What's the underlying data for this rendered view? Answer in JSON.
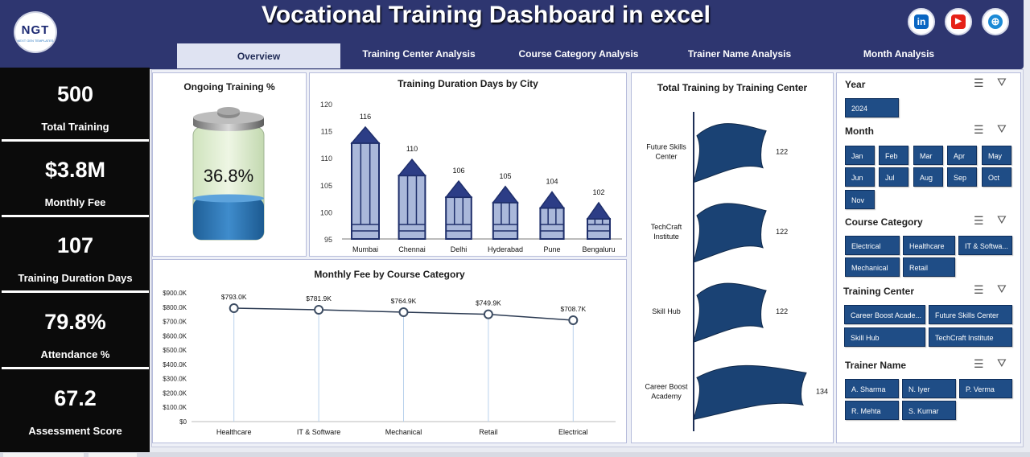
{
  "header": {
    "title": "Vocational Training Dashboard in excel",
    "logo_text": "NGT",
    "logo_subtext": "NEXT GEN TEMPLATES"
  },
  "social": [
    {
      "icon": "linkedin-icon",
      "glyph": "in",
      "color": "#0a66c2"
    },
    {
      "icon": "youtube-icon",
      "glyph": "▶",
      "color": "#e62117"
    },
    {
      "icon": "globe-icon",
      "glyph": "⊕",
      "color": "#1b8ad6"
    }
  ],
  "nav": {
    "tabs": [
      "Overview",
      "Training Center Analysis",
      "Course Category Analysis",
      "Trainer Name Analysis",
      "Month Analysis"
    ],
    "active": "Overview"
  },
  "kpis": [
    {
      "value": "500",
      "label": "Total Training"
    },
    {
      "value": "$3.8M",
      "label": "Monthly Fee"
    },
    {
      "value": "107",
      "label": "Training Duration Days"
    },
    {
      "value": "79.8%",
      "label": "Attendance %"
    },
    {
      "value": "67.2",
      "label": "Assessment Score"
    }
  ],
  "ongoing": {
    "title": "Ongoing Training %",
    "value_label": "36.8%",
    "fill": 0.368
  },
  "charts": [
    {
      "type": "bar",
      "title": "Training Duration Days by City",
      "categories": [
        "Mumbai",
        "Chennai",
        "Delhi",
        "Hyderabad",
        "Pune",
        "Bengaluru"
      ],
      "values": [
        116,
        110,
        106,
        105,
        104,
        102
      ],
      "data_labels": [
        "116",
        "110",
        "106",
        "105",
        "104",
        "102"
      ],
      "yticks": [
        "120",
        "115",
        "110",
        "105",
        "100",
        "95"
      ],
      "ylim": [
        95,
        120
      ]
    },
    {
      "type": "line",
      "title": "Monthly Fee by Course Category",
      "categories": [
        "Healthcare",
        "IT & Software",
        "Mechanical",
        "Retail",
        "Electrical"
      ],
      "values": [
        793.0,
        781.9,
        764.9,
        749.9,
        708.7
      ],
      "data_labels": [
        "$793.0K",
        "$781.9K",
        "$764.9K",
        "$749.9K",
        "$708.7K"
      ],
      "yticks": [
        "$900.0K",
        "$800.0K",
        "$700.0K",
        "$600.0K",
        "$500.0K",
        "$400.0K",
        "$300.0K",
        "$200.0K",
        "$100.0K",
        "$0"
      ],
      "ylim": [
        0,
        900
      ]
    },
    {
      "type": "bar",
      "title": "Total Training by Training Center",
      "categories": [
        "Future Skills Center",
        "TechCraft Institute",
        "Skill Hub",
        "Career Boost Academy"
      ],
      "values": [
        122,
        122,
        122,
        134
      ],
      "data_labels": [
        "122",
        "122",
        "122",
        "134"
      ]
    }
  ],
  "slicers": {
    "year": {
      "title": "Year",
      "items": [
        "2024"
      ]
    },
    "month": {
      "title": "Month",
      "items": [
        "Jan",
        "Feb",
        "Mar",
        "Apr",
        "May",
        "Jun",
        "Jul",
        "Aug",
        "Sep",
        "Oct",
        "Nov"
      ]
    },
    "course": {
      "title": "Course Category",
      "items": [
        "Electrical",
        "Healthcare",
        "IT & Softwa...",
        "Mechanical",
        "Retail"
      ]
    },
    "center": {
      "title": "Training Center",
      "items": [
        "Career Boost Acade...",
        "Future Skills Center",
        "Skill Hub",
        "TechCraft Institute"
      ]
    },
    "trainer": {
      "title": "Trainer Name",
      "items": [
        "A. Sharma",
        "N. Iyer",
        "P. Verma",
        "R. Mehta",
        "S. Kumar"
      ]
    }
  },
  "colors": {
    "header": "#2e3670",
    "accent": "#1f4d86",
    "pencil": "#a9b6d8",
    "pencil_stroke": "#1f2f6b",
    "flag": "#1a4274"
  }
}
